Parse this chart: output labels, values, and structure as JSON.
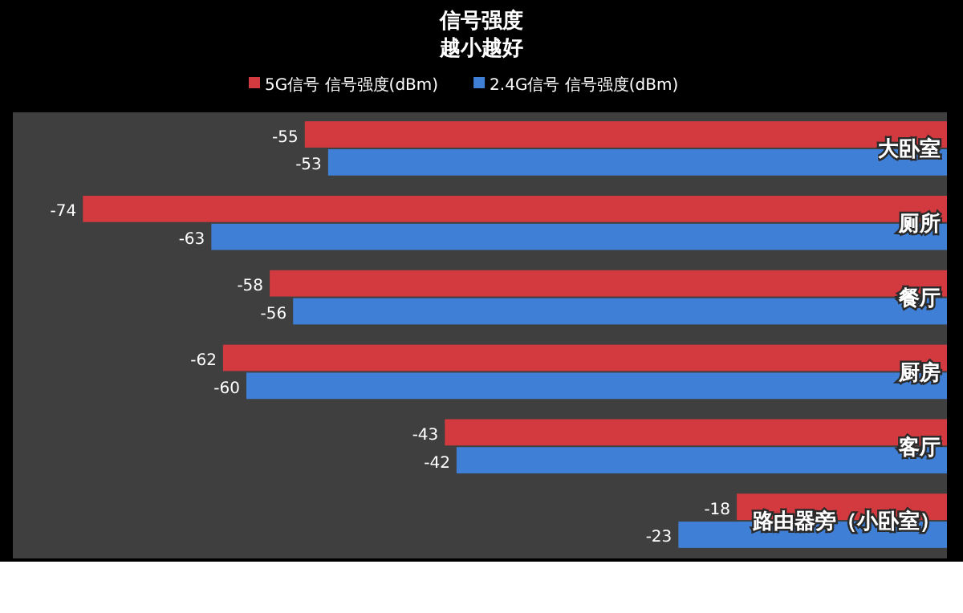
{
  "chart_data": {
    "type": "bar",
    "orientation": "horizontal",
    "title": "信号强度",
    "subtitle": "越小越好",
    "categories": [
      "大卧室",
      "厕所",
      "餐厅",
      "厨房",
      "客厅",
      "路由器旁（小卧室）"
    ],
    "series": [
      {
        "name": "5G信号 信号强度(dBm)",
        "color": "#d23a3f",
        "values": [
          -55,
          -74,
          -58,
          -62,
          -43,
          -18
        ]
      },
      {
        "name": "2.4G信号 信号强度(dBm)",
        "color": "#3f7fd6",
        "values": [
          -53,
          -63,
          -56,
          -60,
          -42,
          -23
        ]
      }
    ],
    "xlim": [
      -80,
      0
    ],
    "data_labels": true,
    "legend": "top"
  }
}
